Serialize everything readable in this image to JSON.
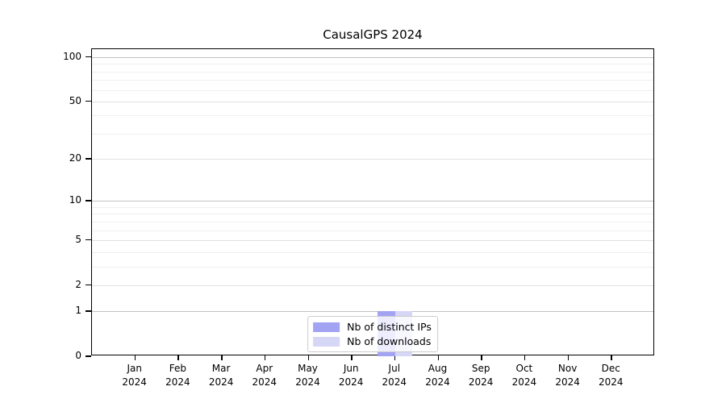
{
  "chart_data": {
    "type": "bar",
    "title": "CausalGPS 2024",
    "categories": [
      {
        "month": "Jan",
        "year": "2024"
      },
      {
        "month": "Feb",
        "year": "2024"
      },
      {
        "month": "Mar",
        "year": "2024"
      },
      {
        "month": "Apr",
        "year": "2024"
      },
      {
        "month": "May",
        "year": "2024"
      },
      {
        "month": "Jun",
        "year": "2024"
      },
      {
        "month": "Jul",
        "year": "2024"
      },
      {
        "month": "Aug",
        "year": "2024"
      },
      {
        "month": "Sep",
        "year": "2024"
      },
      {
        "month": "Oct",
        "year": "2024"
      },
      {
        "month": "Nov",
        "year": "2024"
      },
      {
        "month": "Dec",
        "year": "2024"
      }
    ],
    "series": [
      {
        "name": "Nb of distinct IPs",
        "color": "#a3a3f3",
        "values": [
          0,
          0,
          0,
          0,
          0,
          0,
          1,
          0,
          0,
          0,
          0,
          0
        ]
      },
      {
        "name": "Nb of downloads",
        "color": "#d6d6f7",
        "values": [
          0,
          0,
          0,
          0,
          0,
          0,
          1,
          0,
          0,
          0,
          0,
          0
        ]
      }
    ],
    "yscale": "log1p",
    "ylim": [
      0,
      114
    ],
    "yticks": [
      {
        "value": 0,
        "label": "0"
      },
      {
        "value": 1,
        "label": "1"
      },
      {
        "value": 2,
        "label": "2"
      },
      {
        "value": 5,
        "label": "5"
      },
      {
        "value": 10,
        "label": "10"
      },
      {
        "value": 20,
        "label": "20"
      },
      {
        "value": 50,
        "label": "50"
      },
      {
        "value": 100,
        "label": "100"
      }
    ],
    "decade_gridlines": [
      1,
      10,
      100
    ],
    "minor_gridlines": [
      3,
      4,
      6,
      7,
      8,
      9,
      30,
      40,
      60,
      70,
      80,
      90
    ],
    "grid": true,
    "legend_position": "lower center",
    "colors": {
      "axis": "#000000",
      "grid_major": "#c2c2c2",
      "grid_labeled": "#e1e1e1",
      "grid_minor": "#efefef",
      "legend_border": "#cccccc",
      "background": "#ffffff"
    }
  }
}
